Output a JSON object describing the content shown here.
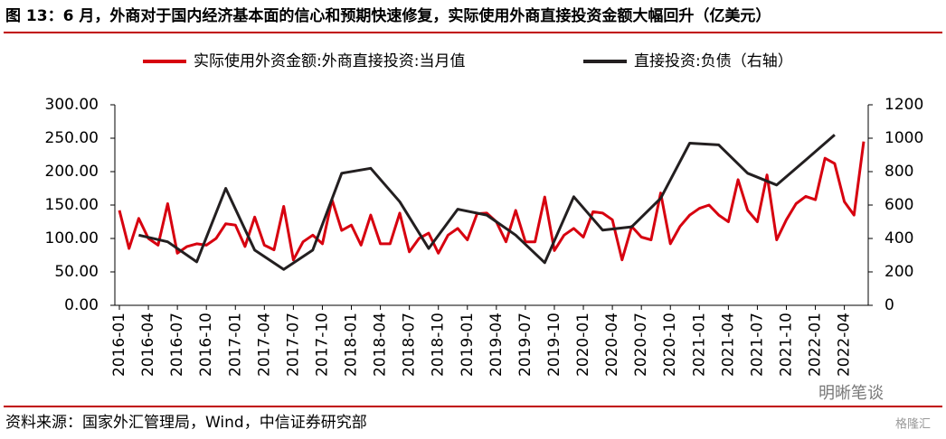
{
  "chart_data": {
    "type": "line",
    "title": "图 13：6 月，外商对于国内经济基本面的信心和预期快速修复，实际使用外商直接投资金额大幅回升（亿美元）",
    "source": "资料来源：国家外汇管理局，Wind，中信证券研究部",
    "watermark": "明晰笔谈",
    "logo": "格隆汇",
    "categories": [
      "2016-01",
      null,
      null,
      "2016-04",
      null,
      null,
      "2016-07",
      null,
      null,
      "2016-10",
      null,
      null,
      "2017-01",
      null,
      null,
      "2017-04",
      null,
      null,
      "2017-07",
      null,
      null,
      "2017-10",
      null,
      null,
      "2018-01",
      null,
      null,
      "2018-04",
      null,
      null,
      "2018-07",
      null,
      null,
      "2018-10",
      null,
      null,
      "2019-01",
      null,
      null,
      "2019-04",
      null,
      null,
      "2019-07",
      null,
      null,
      "2019-10",
      null,
      null,
      "2020-01",
      null,
      null,
      "2020-04",
      null,
      null,
      "2020-07",
      null,
      null,
      "2020-10",
      null,
      null,
      "2021-01",
      null,
      null,
      "2021-04",
      null,
      null,
      "2021-07",
      null,
      null,
      "2021-10",
      null,
      null,
      "2022-01",
      null,
      null,
      "2022-04",
      null,
      null
    ],
    "series": [
      {
        "name": "实际使用外资金额:外商直接投资:当月值",
        "color": "#d7000f",
        "values": [
          142,
          85,
          130,
          100,
          90,
          152,
          78,
          88,
          92,
          90,
          100,
          122,
          120,
          88,
          132,
          90,
          83,
          148,
          68,
          95,
          105,
          92,
          158,
          112,
          120,
          90,
          135,
          92,
          92,
          138,
          80,
          100,
          108,
          78,
          105,
          115,
          98,
          137,
          138,
          125,
          95,
          142,
          95,
          95,
          162,
          82,
          105,
          115,
          102,
          140,
          138,
          128,
          68,
          118,
          102,
          98,
          168,
          92,
          118,
          135,
          145,
          150,
          135,
          125,
          188,
          142,
          125,
          195,
          98,
          128,
          152,
          163,
          158,
          220,
          212,
          155,
          135,
          245
        ]
      },
      {
        "name": "直接投资:负债（右轴）",
        "color": "#231f20",
        "axis": "y2",
        "x": [
          "2016-03",
          "2016-06",
          "2016-09",
          "2016-12",
          "2017-03",
          "2017-06",
          "2017-09",
          "2017-12",
          "2018-03",
          "2018-06",
          "2018-09",
          "2018-12",
          "2019-03",
          "2019-06",
          "2019-09",
          "2019-12",
          "2020-03",
          "2020-06",
          "2020-09",
          "2020-12",
          "2021-03",
          "2021-06",
          "2021-09",
          "2021-12",
          "2022-03"
        ],
        "values": [
          420,
          380,
          260,
          700,
          330,
          215,
          330,
          790,
          820,
          620,
          340,
          575,
          540,
          420,
          255,
          650,
          450,
          470,
          640,
          970,
          960,
          790,
          720,
          870,
          1020
        ]
      }
    ],
    "ylim": [
      0,
      300
    ],
    "yticks": [
      {
        "value": 0,
        "label": "0.00"
      },
      {
        "value": 50,
        "label": "50.00"
      },
      {
        "value": 100,
        "label": "100.00"
      },
      {
        "value": 150,
        "label": "150.00"
      },
      {
        "value": 200,
        "label": "200.00"
      },
      {
        "value": 250,
        "label": "250.00"
      },
      {
        "value": 300,
        "label": "300.00"
      }
    ],
    "y2lim": [
      0,
      1200
    ],
    "y2ticks": [
      0,
      200,
      400,
      600,
      800,
      1000,
      1200
    ],
    "grid": false
  }
}
